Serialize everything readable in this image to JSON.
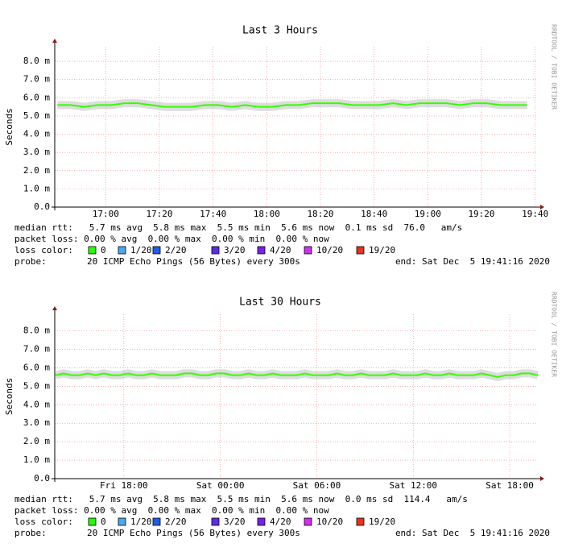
{
  "chart_data": [
    {
      "type": "line",
      "title": "Last 3 Hours",
      "ylabel": "Seconds",
      "watermark": "RRDTOOL / TOBI OETIKER",
      "color": "#33ff00",
      "x": [
        1002,
        1007,
        1012,
        1017,
        1022,
        1027,
        1032,
        1037,
        1042,
        1047,
        1052,
        1057,
        1062,
        1067,
        1072,
        1077,
        1082,
        1087,
        1092,
        1097,
        1102,
        1107,
        1112,
        1117,
        1122,
        1127,
        1132,
        1137,
        1142,
        1147,
        1152,
        1157,
        1162,
        1167,
        1172,
        1177
      ],
      "values": [
        5.6,
        5.6,
        5.5,
        5.6,
        5.6,
        5.7,
        5.7,
        5.6,
        5.5,
        5.5,
        5.5,
        5.6,
        5.6,
        5.5,
        5.6,
        5.5,
        5.5,
        5.6,
        5.6,
        5.7,
        5.7,
        5.7,
        5.6,
        5.6,
        5.6,
        5.7,
        5.6,
        5.7,
        5.7,
        5.7,
        5.6,
        5.7,
        5.7,
        5.6,
        5.6,
        5.6
      ],
      "xlim": [
        1001,
        1181
      ],
      "xticks": [
        {
          "value": 1020,
          "label": "17:00"
        },
        {
          "value": 1040,
          "label": "17:20"
        },
        {
          "value": 1060,
          "label": "17:40"
        },
        {
          "value": 1080,
          "label": "18:00"
        },
        {
          "value": 1100,
          "label": "18:20"
        },
        {
          "value": 1120,
          "label": "18:40"
        },
        {
          "value": 1140,
          "label": "19:00"
        },
        {
          "value": 1160,
          "label": "19:20"
        },
        {
          "value": 1180,
          "label": "19:40"
        }
      ],
      "ylim": [
        0,
        8.8
      ],
      "yticks": [
        {
          "value": 0,
          "label": "0.0"
        },
        {
          "value": 1,
          "label": "1.0 m"
        },
        {
          "value": 2,
          "label": "2.0 m"
        },
        {
          "value": 3,
          "label": "3.0 m"
        },
        {
          "value": 4,
          "label": "4.0 m"
        },
        {
          "value": 5,
          "label": "5.0 m"
        },
        {
          "value": 6,
          "label": "6.0 m"
        },
        {
          "value": 7,
          "label": "7.0 m"
        },
        {
          "value": 8,
          "label": "8.0 m"
        }
      ],
      "grid": true,
      "rtt_line": "median rtt:   5.7 ms avg  5.8 ms max  5.5 ms min  5.6 ms now  0.1 ms sd  76.0   am/s",
      "loss_line": "packet loss: 0.00 % avg  0.00 % max  0.00 % min  0.00 % now",
      "loss_label": "loss color:",
      "loss_colors": [
        {
          "label": "0",
          "color": "#26ff00"
        },
        {
          "label": "1/20",
          "color": "#4aa8ec"
        },
        {
          "label": "2/20",
          "color": "#1f5fe8"
        },
        {
          "label": "3/20",
          "color": "#5b2ee6"
        },
        {
          "label": "4/20",
          "color": "#7a1fe8"
        },
        {
          "label": "10/20",
          "color": "#d030f0"
        },
        {
          "label": "19/20",
          "color": "#e8331f"
        }
      ],
      "probe_label": "probe:",
      "probe": "20 ICMP Echo Pings (56 Bytes) every 300s",
      "end": "end: Sat Dec  5 19:41:16 2020"
    },
    {
      "type": "line",
      "title": "Last 30 Hours",
      "ylabel": "Seconds",
      "watermark": "RRDTOOL / TOBI OETIKER",
      "color": "#33ff00",
      "x": [
        13.75,
        14.25,
        14.75,
        15.25,
        15.75,
        16.25,
        16.75,
        17.25,
        17.75,
        18.25,
        18.75,
        19.25,
        19.75,
        20.25,
        20.75,
        21.25,
        21.75,
        22.25,
        22.75,
        23.25,
        23.75,
        24.25,
        24.75,
        25.25,
        25.75,
        26.25,
        26.75,
        27.25,
        27.75,
        28.25,
        28.75,
        29.25,
        29.75,
        30.25,
        30.75,
        31.25,
        31.75,
        32.25,
        32.75,
        33.25,
        33.75,
        34.25,
        34.75,
        35.25,
        35.75,
        36.25,
        36.75,
        37.25,
        37.75,
        38.25,
        38.75,
        39.25,
        39.75,
        40.25,
        40.75,
        41.25,
        41.75,
        42.25,
        42.75,
        43.25,
        43.75
      ],
      "values": [
        5.6,
        5.7,
        5.6,
        5.6,
        5.7,
        5.6,
        5.7,
        5.6,
        5.6,
        5.7,
        5.6,
        5.6,
        5.7,
        5.6,
        5.6,
        5.6,
        5.7,
        5.7,
        5.6,
        5.6,
        5.7,
        5.7,
        5.6,
        5.6,
        5.7,
        5.6,
        5.6,
        5.7,
        5.6,
        5.6,
        5.6,
        5.7,
        5.6,
        5.6,
        5.6,
        5.7,
        5.6,
        5.6,
        5.7,
        5.6,
        5.6,
        5.6,
        5.7,
        5.6,
        5.6,
        5.6,
        5.7,
        5.6,
        5.6,
        5.7,
        5.6,
        5.6,
        5.6,
        5.7,
        5.6,
        5.5,
        5.6,
        5.6,
        5.7,
        5.7,
        5.6
      ],
      "xlim": [
        13.7,
        43.75
      ],
      "xticks": [
        {
          "value": 18,
          "label": "Fri 18:00"
        },
        {
          "value": 24,
          "label": "Sat 00:00"
        },
        {
          "value": 30,
          "label": "Sat 06:00"
        },
        {
          "value": 36,
          "label": "Sat 12:00"
        },
        {
          "value": 42,
          "label": "Sat 18:00"
        }
      ],
      "ylim": [
        0,
        8.9
      ],
      "yticks": [
        {
          "value": 0,
          "label": "0.0"
        },
        {
          "value": 1,
          "label": "1.0 m"
        },
        {
          "value": 2,
          "label": "2.0 m"
        },
        {
          "value": 3,
          "label": "3.0 m"
        },
        {
          "value": 4,
          "label": "4.0 m"
        },
        {
          "value": 5,
          "label": "5.0 m"
        },
        {
          "value": 6,
          "label": "6.0 m"
        },
        {
          "value": 7,
          "label": "7.0 m"
        },
        {
          "value": 8,
          "label": "8.0 m"
        }
      ],
      "grid": true,
      "rtt_line": "median rtt:   5.7 ms avg  5.8 ms max  5.5 ms min  5.6 ms now  0.0 ms sd  114.4   am/s",
      "loss_line": "packet loss: 0.00 % avg  0.00 % max  0.00 % min  0.00 % now",
      "loss_label": "loss color:",
      "loss_colors": [
        {
          "label": "0",
          "color": "#26ff00"
        },
        {
          "label": "1/20",
          "color": "#4aa8ec"
        },
        {
          "label": "2/20",
          "color": "#1f5fe8"
        },
        {
          "label": "3/20",
          "color": "#5b2ee6"
        },
        {
          "label": "4/20",
          "color": "#7a1fe8"
        },
        {
          "label": "10/20",
          "color": "#d030f0"
        },
        {
          "label": "19/20",
          "color": "#e8331f"
        }
      ],
      "probe_label": "probe:",
      "probe": "20 ICMP Echo Pings (56 Bytes) every 300s",
      "end": "end: Sat Dec  5 19:41:16 2020"
    }
  ]
}
